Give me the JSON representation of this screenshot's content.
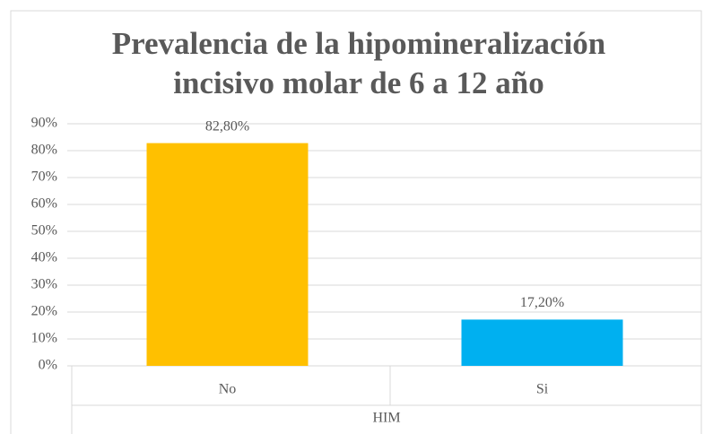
{
  "chart_data": {
    "type": "bar",
    "title": [
      "Prevalencia de la hipomineralización",
      "incisivo molar de 6 a 12 año"
    ],
    "x_label": "HIM",
    "categories": [
      "No",
      "Si"
    ],
    "values": [
      82.8,
      17.2
    ],
    "value_labels": [
      "82,80%",
      "17,20%"
    ],
    "colors": [
      "#ffc000",
      "#00b0f0"
    ],
    "ylim": [
      0,
      90
    ],
    "yticks": [
      {
        "value": 0,
        "label": "0%"
      },
      {
        "value": 10,
        "label": "10%"
      },
      {
        "value": 20,
        "label": "20%"
      },
      {
        "value": 30,
        "label": "30%"
      },
      {
        "value": 40,
        "label": "40%"
      },
      {
        "value": 50,
        "label": "50%"
      },
      {
        "value": 60,
        "label": "60%"
      },
      {
        "value": 70,
        "label": "70%"
      },
      {
        "value": 80,
        "label": "80%"
      },
      {
        "value": 90,
        "label": "90%"
      }
    ],
    "grid": true
  }
}
